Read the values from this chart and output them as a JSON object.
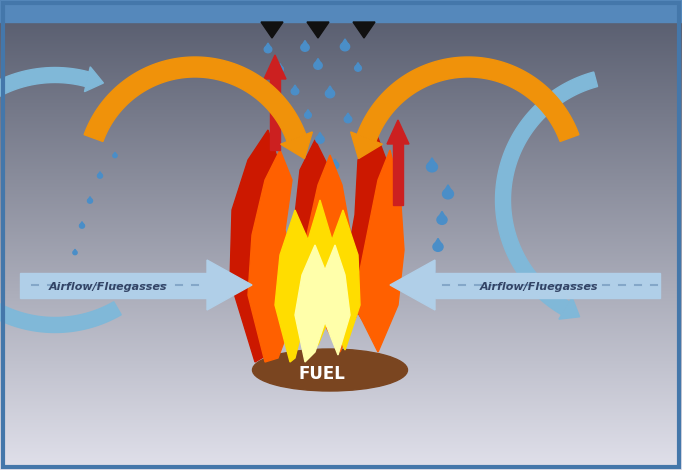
{
  "fuel_label": "FUEL",
  "airflow_label": "Airflow/Fluegasses",
  "fuel_color": "#7a4520",
  "flame_red": "#cc1800",
  "flame_orange": "#ff6000",
  "flame_yellow": "#ffdd00",
  "flame_white": "#ffffaa",
  "arrow_orange": "#f0920a",
  "arrow_blue_light": "#b0cfe8",
  "arrow_blue_curve": "#80b8d8",
  "water_drop": "#4a8ec8",
  "steam_red": "#cc2020",
  "top_bar_color": "#5588bb",
  "top_triangle_color": "#111111",
  "bg_dark": "#3a3a4a",
  "bg_light": "#e0e0ee",
  "border_color": "#4477aa"
}
